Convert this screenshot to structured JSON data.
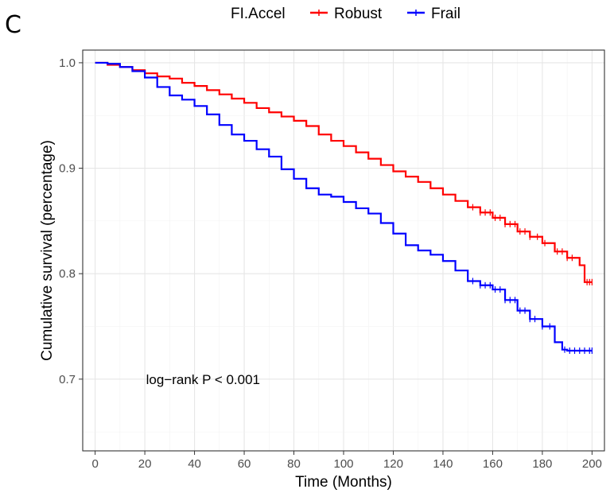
{
  "panel_label": "C",
  "chart_data": {
    "type": "line",
    "title": "",
    "xlabel": "Time (Months)",
    "ylabel": "Cumulative survival (percentage)",
    "xlim": [
      -5,
      205
    ],
    "ylim": [
      0.632,
      1.012
    ],
    "xticks": [
      0,
      20,
      40,
      60,
      80,
      100,
      120,
      140,
      160,
      180,
      200
    ],
    "yticks": [
      0.7,
      0.8,
      0.9,
      1.0
    ],
    "ytick_labels": [
      "0.7",
      "0.8",
      "0.9",
      "1.0"
    ],
    "grid": true,
    "legend": {
      "title": "FI.Accel",
      "position": "top"
    },
    "annotation": "log−rank P < 0.001",
    "series": [
      {
        "name": "Robust",
        "color": "#FF0000",
        "x": [
          0,
          5,
          10,
          15,
          20,
          25,
          30,
          35,
          40,
          45,
          50,
          55,
          60,
          65,
          70,
          75,
          80,
          85,
          90,
          95,
          100,
          105,
          110,
          115,
          120,
          125,
          130,
          135,
          140,
          145,
          150,
          155,
          160,
          165,
          170,
          175,
          180,
          185,
          190,
          195,
          197,
          200
        ],
        "y": [
          1.0,
          0.998,
          0.996,
          0.993,
          0.99,
          0.987,
          0.985,
          0.981,
          0.978,
          0.974,
          0.97,
          0.966,
          0.962,
          0.957,
          0.953,
          0.949,
          0.945,
          0.94,
          0.932,
          0.926,
          0.921,
          0.915,
          0.909,
          0.903,
          0.897,
          0.892,
          0.887,
          0.881,
          0.875,
          0.869,
          0.863,
          0.858,
          0.853,
          0.847,
          0.84,
          0.835,
          0.829,
          0.821,
          0.815,
          0.808,
          0.792,
          0.792
        ],
        "censor_x": [
          152,
          155,
          157,
          159,
          161,
          163,
          165,
          167,
          169,
          171,
          173,
          175,
          178,
          181,
          186,
          188,
          190,
          192,
          198,
          199,
          200
        ]
      },
      {
        "name": "Frail",
        "color": "#0000FF",
        "x": [
          0,
          5,
          10,
          15,
          20,
          25,
          30,
          35,
          40,
          45,
          50,
          55,
          60,
          65,
          70,
          75,
          80,
          85,
          90,
          95,
          100,
          105,
          110,
          115,
          120,
          125,
          130,
          135,
          140,
          145,
          150,
          155,
          160,
          165,
          170,
          175,
          180,
          185,
          188,
          190,
          195,
          200
        ],
        "y": [
          1.0,
          0.999,
          0.996,
          0.992,
          0.986,
          0.977,
          0.969,
          0.965,
          0.959,
          0.951,
          0.941,
          0.932,
          0.926,
          0.918,
          0.911,
          0.899,
          0.89,
          0.881,
          0.875,
          0.873,
          0.868,
          0.862,
          0.857,
          0.848,
          0.838,
          0.827,
          0.822,
          0.818,
          0.812,
          0.803,
          0.793,
          0.789,
          0.785,
          0.775,
          0.765,
          0.757,
          0.75,
          0.735,
          0.728,
          0.727,
          0.727,
          0.727
        ],
        "censor_x": [
          152,
          155,
          157,
          159,
          161,
          163,
          165,
          167,
          169,
          171,
          173,
          175,
          177,
          180,
          183,
          189,
          191,
          193,
          195,
          197,
          199,
          200
        ]
      }
    ]
  }
}
